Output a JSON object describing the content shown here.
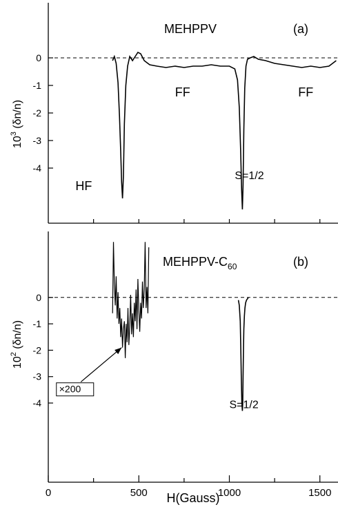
{
  "chart_data": [
    {
      "type": "line",
      "panel_label": "(a)",
      "series_label": "MEHPPV",
      "ylabel_exp": "3",
      "ylabel_prefix": "10",
      "ylabel_suffix": " (δn/n)",
      "ylim": [
        -6,
        2
      ],
      "xlim": [
        0,
        1600
      ],
      "yticks": [
        0,
        -1,
        -2,
        -3,
        -4
      ],
      "ytick_labels": [
        "0",
        "-1",
        "-2",
        "-3",
        "-4"
      ],
      "xticks_minor": [
        250,
        500,
        750,
        1000,
        1250,
        1500
      ],
      "zero_line": "dashed",
      "annotations": [
        {
          "text": "HF",
          "x": 150,
          "y": -4.8
        },
        {
          "text": "FF",
          "x": 700,
          "y": -1.4
        },
        {
          "text": "FF",
          "x": 1380,
          "y": -1.4
        },
        {
          "text": "S=1/2",
          "x": 1030,
          "y": -4.4
        }
      ],
      "series": [
        {
          "x": [
            355,
            365,
            375,
            385,
            393,
            400,
            405,
            410,
            415,
            420,
            428,
            438,
            450,
            465,
            480,
            495,
            510,
            530,
            560,
            600,
            650,
            700,
            750,
            800,
            850,
            900,
            950,
            1000,
            1030,
            1045,
            1055,
            1062,
            1068,
            1072,
            1076,
            1080,
            1085,
            1092,
            1100,
            1115,
            1135,
            1160,
            1200,
            1250,
            1300,
            1350,
            1400,
            1450,
            1500,
            1550,
            1590
          ],
          "y": [
            -0.1,
            0.05,
            -0.2,
            -0.9,
            -2.1,
            -3.4,
            -4.5,
            -5.1,
            -4.3,
            -2.4,
            -1.0,
            -0.3,
            0.05,
            -0.1,
            0.05,
            0.2,
            0.15,
            -0.1,
            -0.25,
            -0.3,
            -0.35,
            -0.3,
            -0.35,
            -0.3,
            -0.3,
            -0.25,
            -0.3,
            -0.3,
            -0.4,
            -0.8,
            -1.8,
            -3.3,
            -4.8,
            -5.5,
            -4.6,
            -2.6,
            -1.1,
            -0.3,
            -0.05,
            0.0,
            0.05,
            -0.05,
            -0.1,
            -0.2,
            -0.25,
            -0.3,
            -0.35,
            -0.3,
            -0.35,
            -0.3,
            -0.1
          ]
        }
      ]
    },
    {
      "type": "line",
      "panel_label": "(b)",
      "series_label_main": "MEHPPV-C",
      "series_label_sub": "60",
      "ylabel_exp": "2",
      "ylabel_prefix": "10",
      "ylabel_suffix": " (δn/n)",
      "ylim": [
        -7,
        2.5
      ],
      "xlim": [
        0,
        1600
      ],
      "yticks": [
        0,
        -1,
        -2,
        -3,
        -4
      ],
      "ytick_labels": [
        "0",
        "-1",
        "-2",
        "-3",
        "-4"
      ],
      "xticks": [
        0,
        500,
        1000,
        1500
      ],
      "xtick_labels": [
        "0",
        "500",
        "1000",
        "1500"
      ],
      "xticks_minor": [
        250,
        750,
        1250
      ],
      "xlabel": "H(Gauss)",
      "zero_line": "dashed",
      "annotations": [
        {
          "text": "×200",
          "x": 60,
          "y": -3.6
        },
        {
          "text": "S=1/2",
          "x": 1000,
          "y": -4.2
        }
      ],
      "arrow": {
        "from": [
          180,
          -3.2
        ],
        "to": [
          405,
          -1.9
        ]
      },
      "series": [
        {
          "name": "HF (×200)",
          "x": [
            355,
            360,
            365,
            370,
            375,
            380,
            385,
            390,
            395,
            400,
            405,
            410,
            415,
            420,
            425,
            430,
            435,
            440,
            445,
            450,
            455,
            460,
            465,
            470,
            475,
            480,
            485,
            490,
            495,
            500,
            505,
            510,
            515,
            520,
            525,
            530,
            535,
            540,
            545,
            550,
            555
          ],
          "y": [
            -0.6,
            2.1,
            0.5,
            -0.3,
            0.8,
            -0.8,
            0.2,
            -1.0,
            -0.4,
            -1.5,
            -0.8,
            -1.9,
            -1.2,
            -0.9,
            -2.3,
            -1.0,
            -1.7,
            -0.4,
            -1.8,
            -1.1,
            0.1,
            -1.4,
            -0.6,
            -1.5,
            -0.2,
            -0.9,
            0.3,
            -1.2,
            0.7,
            -0.5,
            -1.3,
            -0.2,
            -0.8,
            0.6,
            -0.4,
            0.3,
            2.1,
            -0.4,
            0.4,
            -0.6,
            1.9
          ]
        },
        {
          "name": "S=1/2",
          "x": [
            1050,
            1055,
            1060,
            1063,
            1066,
            1069,
            1072,
            1074,
            1076,
            1078,
            1080,
            1083,
            1086,
            1090,
            1095,
            1100,
            1105
          ],
          "y": [
            -0.1,
            -0.3,
            -0.9,
            -1.8,
            -3.0,
            -4.0,
            -4.3,
            -4.0,
            -3.0,
            -1.9,
            -1.2,
            -0.7,
            -0.4,
            -0.2,
            -0.1,
            -0.05,
            0.0
          ]
        }
      ]
    }
  ]
}
